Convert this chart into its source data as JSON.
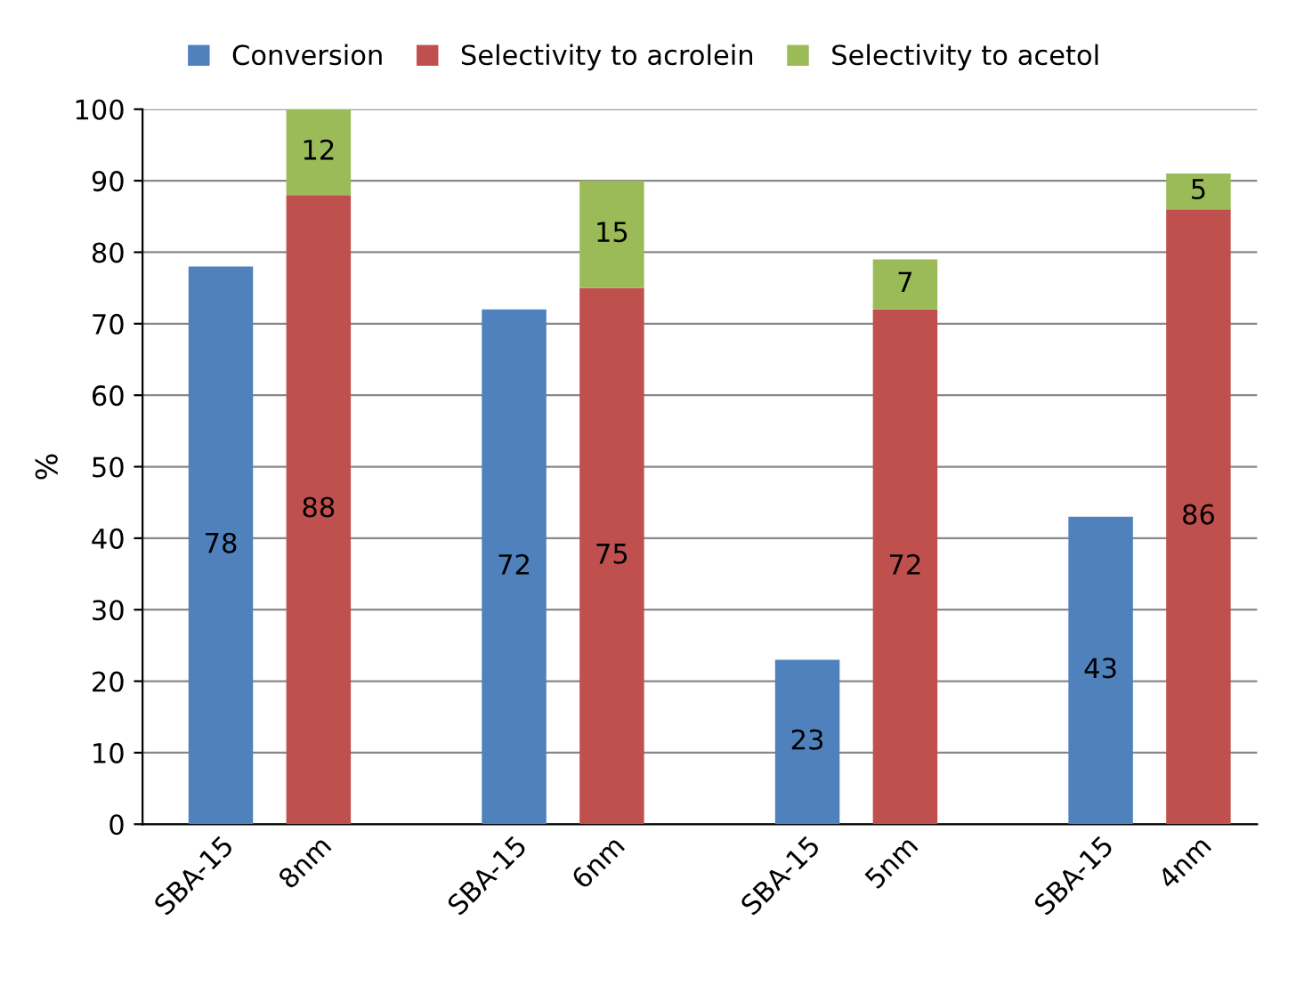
{
  "chart_data": {
    "type": "bar",
    "ylabel": "%",
    "categories": [
      "SBA-15",
      "8nm",
      null,
      "SBA-15",
      "6nm",
      null,
      "SBA-15",
      "5nm",
      null,
      "SBA-15",
      "4nm"
    ],
    "series": [
      {
        "name": "Conversion",
        "color": "#4f81bd",
        "values": [
          78,
          null,
          null,
          72,
          null,
          null,
          23,
          null,
          null,
          43,
          null
        ]
      },
      {
        "name": "Selectivity to acrolein",
        "color": "#c0504d",
        "values": [
          null,
          88,
          null,
          null,
          75,
          null,
          null,
          72,
          null,
          null,
          86
        ]
      },
      {
        "name": "Selectivity to acetol",
        "color": "#9bbb59",
        "values": [
          null,
          12,
          null,
          null,
          15,
          null,
          null,
          7,
          null,
          null,
          5
        ]
      }
    ],
    "stacked": true,
    "data_labels": true,
    "ylim": [
      0,
      100
    ],
    "yticks": [
      0,
      10,
      20,
      30,
      40,
      50,
      60,
      70,
      80,
      90,
      100
    ],
    "grid": "y",
    "legend": "top"
  }
}
